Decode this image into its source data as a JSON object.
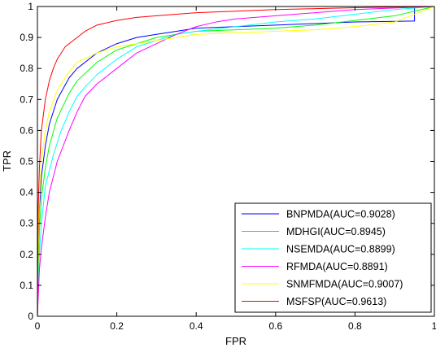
{
  "chart_data": {
    "type": "line",
    "title": "",
    "xlabel": "FPR",
    "ylabel": "TPR",
    "xlim": [
      0,
      1
    ],
    "ylim": [
      0,
      1
    ],
    "xticks": [
      "0",
      "0.2",
      "0.4",
      "0.6",
      "0.8",
      "1"
    ],
    "yticks": [
      "0",
      "0.1",
      "0.2",
      "0.3",
      "0.4",
      "0.5",
      "0.6",
      "0.7",
      "0.8",
      "0.9",
      "1"
    ],
    "grid": false,
    "legend_position": "bottom-right",
    "series": [
      {
        "name": "BNPMDA(AUC=0.9028)",
        "color": "#0000ff",
        "x": [
          0,
          0.002,
          0.005,
          0.01,
          0.02,
          0.03,
          0.05,
          0.08,
          0.1,
          0.15,
          0.2,
          0.25,
          0.3,
          0.35,
          0.4,
          0.5,
          0.6,
          0.7,
          0.8,
          0.9,
          0.95,
          0.95,
          1
        ],
        "y": [
          0,
          0.25,
          0.35,
          0.45,
          0.55,
          0.62,
          0.7,
          0.77,
          0.8,
          0.85,
          0.88,
          0.9,
          0.91,
          0.92,
          0.93,
          0.935,
          0.94,
          0.945,
          0.95,
          0.952,
          0.953,
          1.0,
          1.0
        ]
      },
      {
        "name": "MDHGI(AUC=0.8945)",
        "color": "#00ff00",
        "x": [
          0,
          0.005,
          0.01,
          0.02,
          0.03,
          0.05,
          0.08,
          0.1,
          0.15,
          0.2,
          0.25,
          0.3,
          0.35,
          0.4,
          0.5,
          0.6,
          0.7,
          0.8,
          0.9,
          1
        ],
        "y": [
          0,
          0.28,
          0.38,
          0.48,
          0.55,
          0.64,
          0.72,
          0.76,
          0.82,
          0.86,
          0.88,
          0.9,
          0.91,
          0.92,
          0.925,
          0.93,
          0.94,
          0.955,
          0.97,
          1.0
        ]
      },
      {
        "name": "NSEMDA(AUC=0.8899)",
        "color": "#00ffff",
        "x": [
          0,
          0.005,
          0.01,
          0.02,
          0.04,
          0.06,
          0.08,
          0.1,
          0.12,
          0.15,
          0.2,
          0.25,
          0.3,
          0.35,
          0.4,
          0.5,
          0.6,
          0.7,
          0.8,
          0.9,
          1
        ],
        "y": [
          0,
          0.2,
          0.3,
          0.42,
          0.52,
          0.6,
          0.66,
          0.71,
          0.74,
          0.78,
          0.83,
          0.87,
          0.89,
          0.91,
          0.92,
          0.935,
          0.95,
          0.96,
          0.975,
          0.99,
          1.0
        ]
      },
      {
        "name": "RFMDA(AUC=0.8891)",
        "color": "#ff00ff",
        "x": [
          0,
          0.005,
          0.01,
          0.02,
          0.03,
          0.05,
          0.08,
          0.1,
          0.12,
          0.15,
          0.2,
          0.25,
          0.3,
          0.35,
          0.4,
          0.45,
          0.5,
          0.6,
          0.7,
          0.8,
          0.9,
          1
        ],
        "y": [
          0,
          0.15,
          0.22,
          0.32,
          0.4,
          0.5,
          0.6,
          0.66,
          0.71,
          0.75,
          0.8,
          0.85,
          0.88,
          0.91,
          0.935,
          0.95,
          0.96,
          0.97,
          0.98,
          0.99,
          0.995,
          1.0
        ]
      },
      {
        "name": "SNMFMDA(AUC=0.9007)",
        "color": "#ffff00",
        "x": [
          0,
          0.003,
          0.005,
          0.01,
          0.02,
          0.03,
          0.05,
          0.08,
          0.1,
          0.15,
          0.2,
          0.25,
          0.3,
          0.35,
          0.4,
          0.5,
          0.6,
          0.7,
          0.8,
          0.9,
          1
        ],
        "y": [
          0,
          0.3,
          0.38,
          0.5,
          0.6,
          0.66,
          0.73,
          0.79,
          0.82,
          0.85,
          0.87,
          0.88,
          0.89,
          0.9,
          0.91,
          0.915,
          0.92,
          0.925,
          0.935,
          0.95,
          1.0
        ]
      },
      {
        "name": "MSFSP(AUC=0.9613)",
        "color": "#ff0000",
        "x": [
          0,
          0.002,
          0.005,
          0.01,
          0.02,
          0.03,
          0.04,
          0.05,
          0.07,
          0.09,
          0.1,
          0.12,
          0.15,
          0.2,
          0.25,
          0.3,
          0.4,
          0.5,
          0.6,
          0.7,
          0.8,
          0.9,
          1
        ],
        "y": [
          0,
          0.35,
          0.48,
          0.6,
          0.7,
          0.76,
          0.8,
          0.83,
          0.87,
          0.89,
          0.9,
          0.92,
          0.94,
          0.955,
          0.965,
          0.97,
          0.98,
          0.985,
          0.99,
          0.993,
          0.996,
          0.998,
          1.0
        ]
      }
    ]
  }
}
